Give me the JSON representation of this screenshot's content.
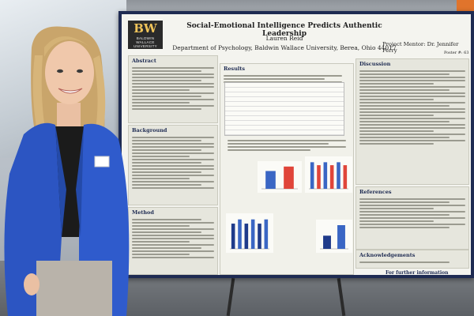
{
  "poster": {
    "logo_text": "BW",
    "logo_name": "BALDWIN WALLACE UNIVERSITY",
    "title": "Social-Emotional Intelligence Predicts Authentic Leadership",
    "author": "Lauren Reid",
    "department": "Department of Psychology, Baldwin Wallace University, Berea, Ohio 44017",
    "mentor": "Project Mentor: Dr. Jennifer Perry",
    "poster_number": "Poster #: 63",
    "sections": {
      "abstract": "Abstract",
      "background": "Background",
      "method": "Method",
      "results": "Results",
      "discussion": "Discussion",
      "references": "References",
      "acknowledgements": "Acknowledgements",
      "further_info": "For further information"
    }
  },
  "colors": {
    "poster_border": "#1e2b52",
    "bar_blue": "#3a66c4",
    "bar_red": "#e0453a",
    "bar_navy": "#1f3b8a"
  },
  "chart_data": [
    {
      "type": "bar",
      "values": [
        4,
        5
      ]
    },
    {
      "type": "bar",
      "values": [
        9,
        8,
        9,
        8,
        9,
        8
      ]
    },
    {
      "type": "bar",
      "values": [
        6,
        7,
        6,
        7,
        6,
        7
      ]
    },
    {
      "type": "bar",
      "values": [
        5,
        9
      ]
    }
  ]
}
